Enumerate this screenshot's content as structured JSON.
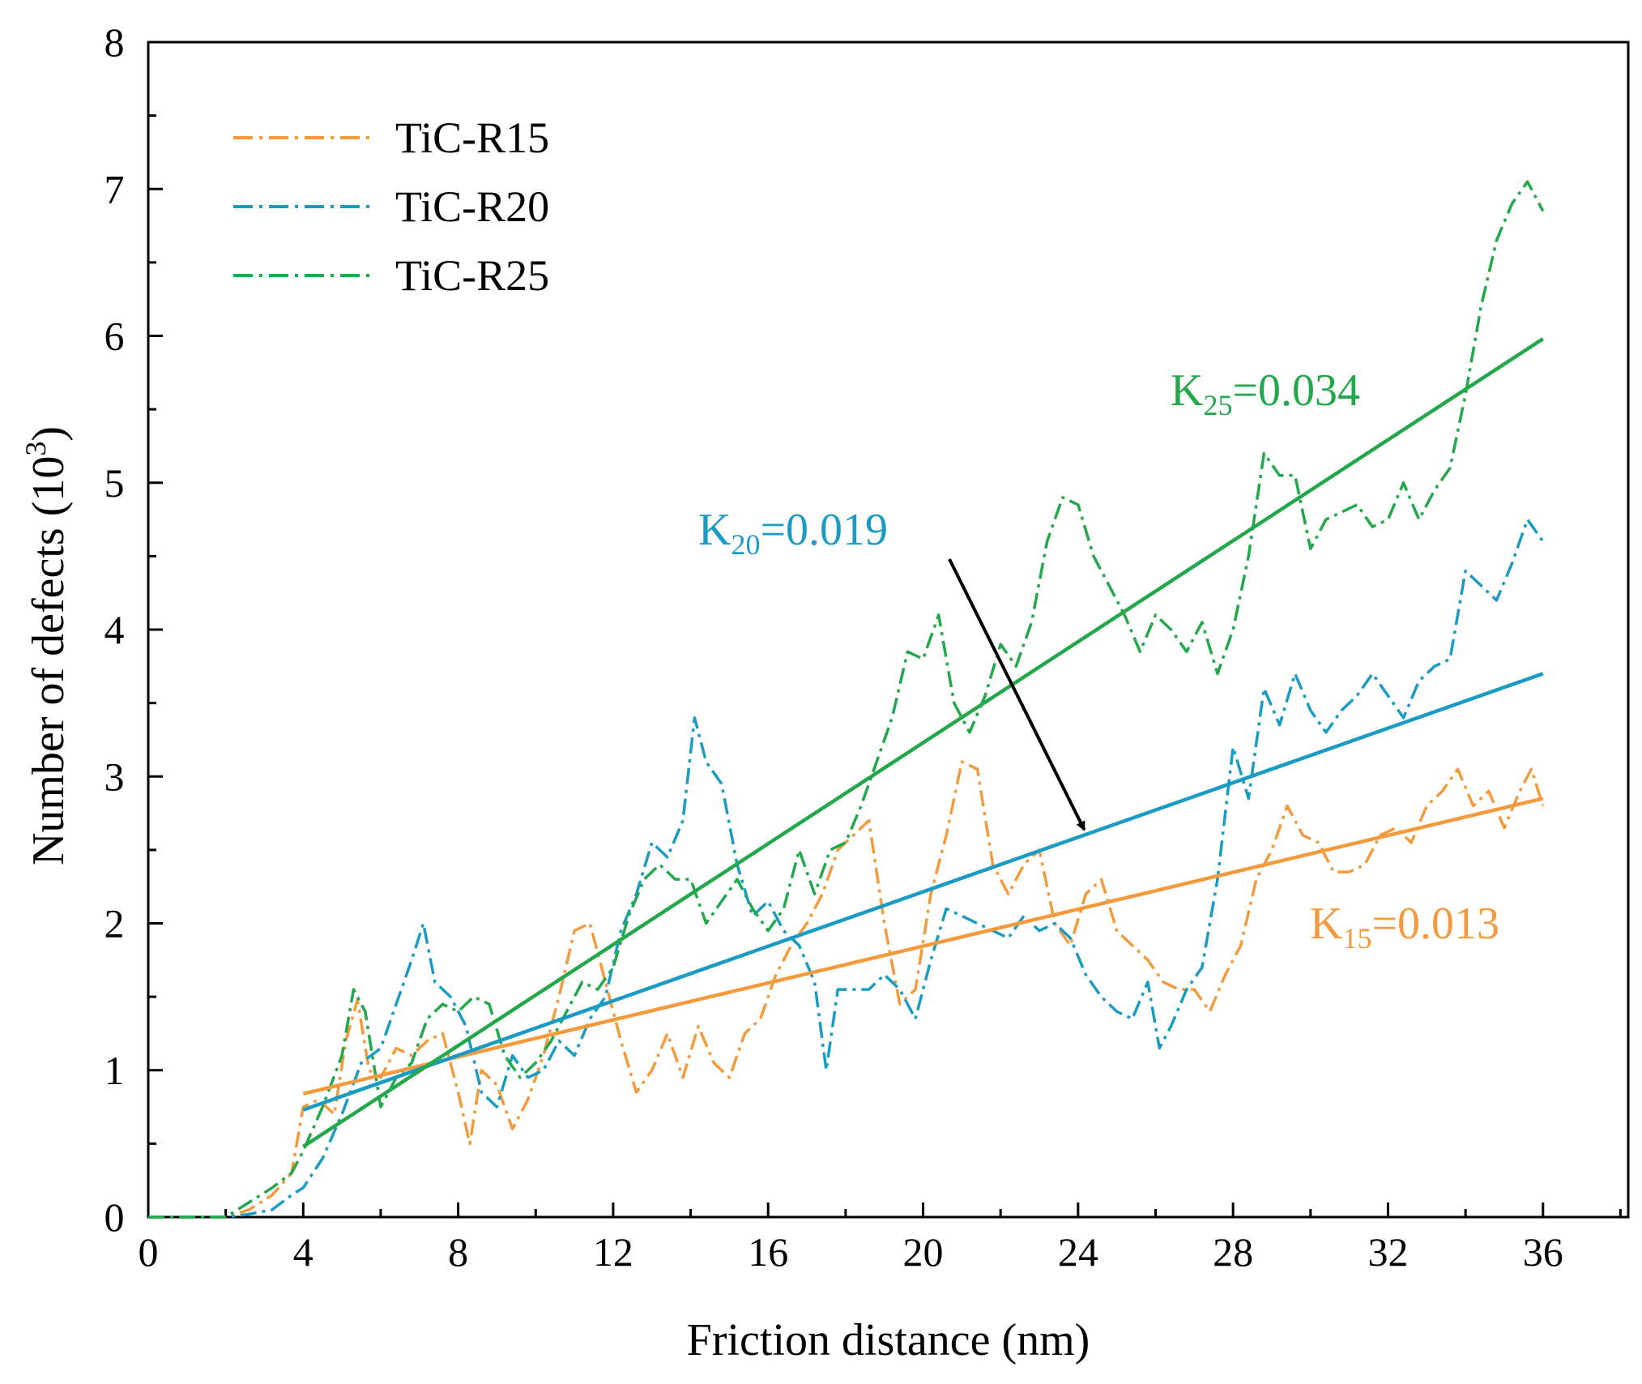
{
  "colors": {
    "r15": "#f39a3c",
    "r20": "#1a9bc4",
    "r25": "#22a84b",
    "axis": "#000000",
    "arrow": "#000000"
  },
  "chart_data": {
    "type": "line",
    "title": "",
    "xlabel": "Friction distance (nm)",
    "ylabel_main": "Number of defects (10",
    "ylabel_sup": "3",
    "ylabel_tail": ")",
    "xlim": [
      0,
      38.2
    ],
    "ylim": [
      0,
      8
    ],
    "xticks": [
      0,
      4,
      8,
      12,
      16,
      20,
      24,
      28,
      32,
      36
    ],
    "yticks": [
      0,
      1,
      2,
      3,
      4,
      5,
      6,
      7,
      8
    ],
    "legend_position": "top-left",
    "series": [
      {
        "key": "r15",
        "name": "TiC-R15",
        "style": "dash-dot",
        "x": [
          0,
          2,
          2.6,
          3.2,
          3.7,
          4.0,
          4.4,
          4.8,
          5.1,
          5.4,
          5.7,
          6.0,
          6.4,
          6.8,
          7.2,
          7.6,
          8.0,
          8.3,
          8.6,
          9.0,
          9.4,
          9.8,
          10.2,
          10.6,
          11.0,
          11.4,
          11.8,
          12.2,
          12.6,
          13.0,
          13.4,
          13.8,
          14.2,
          14.6,
          15.0,
          15.4,
          15.8,
          16.2,
          16.6,
          17.0,
          17.4,
          17.8,
          18.2,
          18.6,
          19.0,
          19.4,
          19.8,
          20.2,
          20.6,
          21.0,
          21.4,
          21.8,
          22.2,
          22.6,
          23.0,
          23.4,
          23.8,
          24.2,
          24.6,
          25.0,
          25.4,
          25.8,
          26.2,
          26.6,
          27.0,
          27.4,
          27.8,
          28.2,
          28.6,
          29.0,
          29.4,
          29.8,
          30.2,
          30.6,
          31.0,
          31.4,
          31.8,
          32.2,
          32.6,
          33.0,
          33.4,
          33.8,
          34.2,
          34.6,
          35.0,
          35.4,
          35.7,
          36.0
        ],
        "y": [
          0,
          0,
          0.05,
          0.15,
          0.3,
          0.75,
          0.8,
          0.7,
          1.2,
          1.48,
          1.0,
          0.95,
          1.15,
          1.1,
          1.2,
          1.25,
          0.85,
          0.5,
          1.0,
          0.9,
          0.6,
          0.8,
          1.1,
          1.5,
          1.95,
          2.0,
          1.6,
          1.2,
          0.85,
          1.0,
          1.25,
          0.95,
          1.3,
          1.05,
          0.95,
          1.25,
          1.35,
          1.65,
          1.85,
          2.0,
          2.2,
          2.5,
          2.6,
          2.7,
          2.0,
          1.45,
          1.55,
          2.2,
          2.6,
          3.1,
          3.05,
          2.4,
          2.2,
          2.4,
          2.5,
          2.0,
          1.85,
          2.2,
          2.3,
          1.95,
          1.85,
          1.75,
          1.6,
          1.55,
          1.55,
          1.4,
          1.65,
          1.85,
          2.3,
          2.5,
          2.8,
          2.6,
          2.55,
          2.35,
          2.35,
          2.4,
          2.6,
          2.65,
          2.55,
          2.8,
          2.9,
          3.05,
          2.8,
          2.9,
          2.65,
          2.9,
          3.05,
          2.8
        ]
      },
      {
        "key": "r20",
        "name": "TiC-R20",
        "style": "dash-dot",
        "x": [
          0,
          2,
          2.6,
          3.2,
          3.7,
          4.0,
          4.5,
          5.0,
          5.5,
          6.0,
          6.4,
          6.8,
          7.1,
          7.4,
          7.8,
          8.2,
          8.6,
          9.0,
          9.4,
          9.8,
          10.2,
          10.6,
          11.0,
          11.4,
          11.8,
          12.2,
          12.6,
          13.0,
          13.4,
          13.8,
          14.1,
          14.4,
          14.8,
          15.2,
          15.6,
          16.0,
          16.4,
          16.8,
          17.2,
          17.5,
          17.8,
          18.2,
          18.6,
          19.0,
          19.4,
          19.8,
          20.2,
          20.6,
          21.0,
          21.4,
          21.8,
          22.2,
          22.6,
          23.0,
          23.4,
          23.8,
          24.2,
          24.6,
          25.0,
          25.4,
          25.8,
          26.1,
          26.4,
          26.8,
          27.2,
          27.6,
          28.0,
          28.4,
          28.8,
          29.2,
          29.6,
          30.0,
          30.4,
          30.8,
          31.2,
          31.6,
          32.0,
          32.4,
          32.8,
          33.2,
          33.6,
          34.0,
          34.4,
          34.8,
          35.2,
          35.6,
          36.0
        ],
        "y": [
          0,
          0,
          0.02,
          0.05,
          0.15,
          0.2,
          0.4,
          0.7,
          1.05,
          1.15,
          1.45,
          1.75,
          2.0,
          1.6,
          1.5,
          1.3,
          0.85,
          0.75,
          1.1,
          0.95,
          1.0,
          1.2,
          1.1,
          1.35,
          1.5,
          1.95,
          2.2,
          2.55,
          2.45,
          2.7,
          3.4,
          3.1,
          2.95,
          2.4,
          2.05,
          2.15,
          1.95,
          1.85,
          1.6,
          1.0,
          1.55,
          1.55,
          1.55,
          1.65,
          1.55,
          1.35,
          1.75,
          2.1,
          2.05,
          2.0,
          1.95,
          1.9,
          2.05,
          1.95,
          2.0,
          1.9,
          1.65,
          1.5,
          1.4,
          1.35,
          1.6,
          1.15,
          1.3,
          1.55,
          1.7,
          2.3,
          3.2,
          2.85,
          3.6,
          3.35,
          3.7,
          3.45,
          3.3,
          3.45,
          3.55,
          3.7,
          3.55,
          3.4,
          3.65,
          3.75,
          3.8,
          4.4,
          4.3,
          4.2,
          4.45,
          4.75,
          4.6
        ]
      },
      {
        "key": "r25",
        "name": "TiC-R25",
        "style": "dash-dot",
        "x": [
          0,
          2,
          2.6,
          3.2,
          3.7,
          4.0,
          4.5,
          5.0,
          5.3,
          5.6,
          6.0,
          6.4,
          6.8,
          7.2,
          7.6,
          8.0,
          8.4,
          8.8,
          9.2,
          9.6,
          10.0,
          10.4,
          10.8,
          11.2,
          11.6,
          12.0,
          12.4,
          12.8,
          13.2,
          13.6,
          14.0,
          14.4,
          14.8,
          15.2,
          15.6,
          16.0,
          16.4,
          16.8,
          17.2,
          17.6,
          18.0,
          18.4,
          18.8,
          19.2,
          19.6,
          20.0,
          20.4,
          20.8,
          21.2,
          21.6,
          22.0,
          22.4,
          22.8,
          23.2,
          23.6,
          24.0,
          24.4,
          24.8,
          25.2,
          25.6,
          26.0,
          26.4,
          26.8,
          27.2,
          27.6,
          28.0,
          28.4,
          28.8,
          29.2,
          29.6,
          30.0,
          30.4,
          30.8,
          31.2,
          31.6,
          32.0,
          32.4,
          32.8,
          33.2,
          33.6,
          34.0,
          34.4,
          34.8,
          35.2,
          35.6,
          36.0
        ],
        "y": [
          0,
          0,
          0.1,
          0.2,
          0.3,
          0.45,
          0.75,
          1.1,
          1.55,
          1.4,
          0.75,
          0.95,
          1.05,
          1.35,
          1.45,
          1.4,
          1.5,
          1.45,
          1.1,
          0.95,
          1.05,
          1.2,
          1.4,
          1.6,
          1.55,
          1.7,
          2.05,
          2.3,
          2.4,
          2.3,
          2.3,
          2.0,
          2.15,
          2.3,
          2.1,
          1.95,
          2.1,
          2.5,
          2.2,
          2.5,
          2.55,
          2.8,
          3.1,
          3.4,
          3.85,
          3.8,
          4.1,
          3.5,
          3.3,
          3.55,
          3.9,
          3.75,
          4.05,
          4.6,
          4.9,
          4.85,
          4.5,
          4.3,
          4.1,
          3.85,
          4.1,
          4.0,
          3.85,
          4.05,
          3.7,
          4.0,
          4.5,
          5.2,
          5.05,
          5.05,
          4.55,
          4.75,
          4.8,
          4.85,
          4.7,
          4.75,
          5.0,
          4.75,
          4.95,
          5.1,
          5.6,
          6.2,
          6.65,
          6.9,
          7.05,
          6.85
        ]
      }
    ],
    "fits": [
      {
        "key": "r15",
        "x": [
          4,
          36
        ],
        "y": [
          0.84,
          2.85
        ]
      },
      {
        "key": "r20",
        "x": [
          4,
          36
        ],
        "y": [
          0.73,
          3.7
        ]
      },
      {
        "key": "r25",
        "x": [
          4,
          36
        ],
        "y": [
          0.48,
          5.98
        ]
      }
    ],
    "annotations": [
      {
        "key": "r25",
        "base": "K",
        "sub": "25",
        "value": "=0.034"
      },
      {
        "key": "r20",
        "base": "K",
        "sub": "20",
        "value": "=0.019"
      },
      {
        "key": "r15",
        "base": "K",
        "sub": "15",
        "value": "=0.013"
      }
    ]
  }
}
